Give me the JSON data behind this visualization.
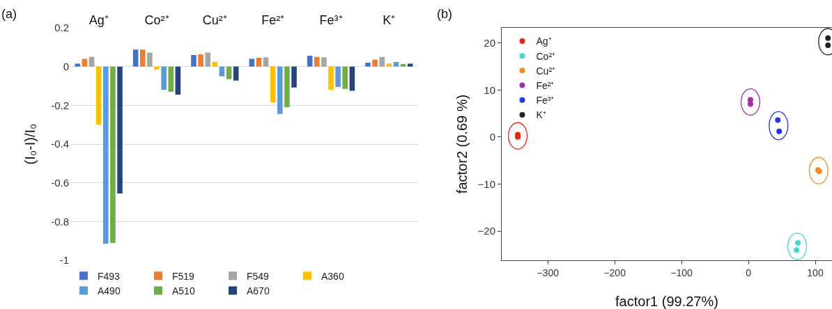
{
  "chart_data": [
    {
      "type": "bar",
      "annotations": [
        "(a)"
      ],
      "ylabel": "(I₀-I)/I₀",
      "categories": [
        "Ag⁺",
        "Co²⁺",
        "Cu²⁺",
        "Fe²⁺",
        "Fe³⁺",
        "K⁺"
      ],
      "series": [
        {
          "name": "F493",
          "color": "#4472c4",
          "values": [
            0.015,
            0.088,
            0.06,
            0.04,
            0.056,
            0.02
          ]
        },
        {
          "name": "F519",
          "color": "#ed7d31",
          "values": [
            0.04,
            0.088,
            0.063,
            0.046,
            0.05,
            0.036
          ]
        },
        {
          "name": "F549",
          "color": "#a5a5a5",
          "values": [
            0.05,
            0.072,
            0.073,
            0.048,
            0.048,
            0.05
          ]
        },
        {
          "name": "A360",
          "color": "#ffc000",
          "values": [
            -0.3,
            -0.015,
            0.025,
            -0.185,
            -0.12,
            0.016
          ]
        },
        {
          "name": "A490",
          "color": "#5b9bd5",
          "values": [
            -0.915,
            -0.12,
            -0.05,
            -0.245,
            -0.105,
            0.024
          ]
        },
        {
          "name": "A510",
          "color": "#70ad47",
          "values": [
            -0.91,
            -0.13,
            -0.065,
            -0.21,
            -0.115,
            0.013
          ]
        },
        {
          "name": "A670",
          "color": "#264478",
          "values": [
            -0.655,
            -0.145,
            -0.072,
            -0.108,
            -0.125,
            0.015
          ]
        }
      ],
      "ylim": [
        -1,
        0.2
      ],
      "yticks": [
        {
          "value": -1,
          "label": "-1"
        },
        {
          "value": -0.8,
          "label": "-0.8"
        },
        {
          "value": -0.6,
          "label": "-0.6"
        },
        {
          "value": -0.4,
          "label": "-0.4"
        },
        {
          "value": -0.2,
          "label": "-0.2"
        },
        0,
        0.2
      ],
      "grid": "y",
      "legend": "bottom"
    },
    {
      "type": "scatter",
      "annotations": [
        "(b)"
      ],
      "xlabel": "factor1 (99.27%)",
      "ylabel": "factor2 (0.69 %)",
      "marker": "circle",
      "series": [
        {
          "name": "Ag⁺",
          "color": "#ee2211",
          "x": [
            -345,
            -345
          ],
          "values": [
            0.5,
            0
          ]
        },
        {
          "name": "Co²⁺",
          "color": "#40d8d0",
          "x": [
            74,
            72
          ],
          "values": [
            -22.5,
            -24
          ]
        },
        {
          "name": "Cu²⁺",
          "color": "#f08c20",
          "x": [
            104,
            106
          ],
          "values": [
            -7,
            -7.3
          ]
        },
        {
          "name": "Fe²⁺",
          "color": "#a030a8",
          "x": [
            3,
            3
          ],
          "values": [
            7.9,
            7
          ]
        },
        {
          "name": "Fe³⁺",
          "color": "#2233ee",
          "x": [
            44,
            46
          ],
          "values": [
            3.6,
            1.2
          ]
        },
        {
          "name": "K⁺",
          "color": "#222222",
          "x": [
            119,
            119
          ],
          "values": [
            21,
            19.5
          ]
        }
      ],
      "xlim": [
        -369,
        125
      ],
      "ylim": [
        -26.2,
        23.2
      ],
      "xticks": [
        {
          "value": -300,
          "label": "−300"
        },
        {
          "value": -200,
          "label": "−200"
        },
        {
          "value": -100,
          "label": "−100"
        },
        0,
        100
      ],
      "yticks": [
        {
          "value": -20,
          "label": "−20"
        },
        {
          "value": -10,
          "label": "−10"
        },
        0,
        10,
        20
      ],
      "grid": false,
      "legend": "top left"
    }
  ]
}
